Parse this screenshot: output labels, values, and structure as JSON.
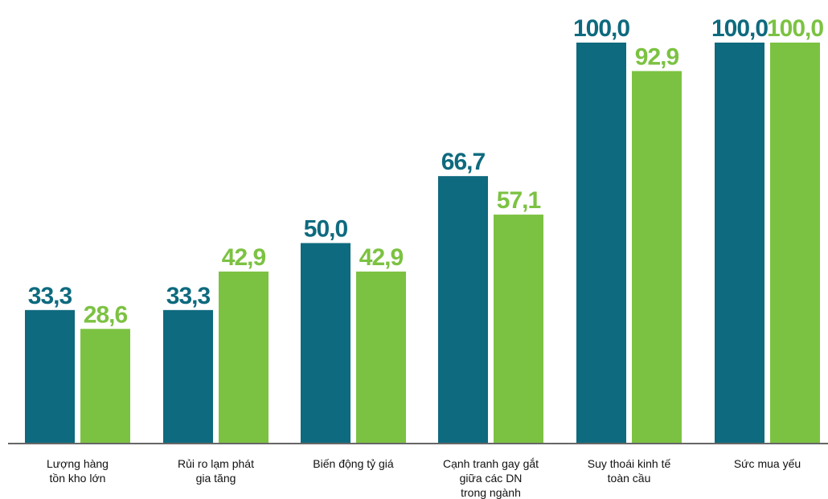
{
  "chart_data": {
    "type": "bar",
    "categories": [
      [
        "Lượng hàng",
        "tồn kho lớn"
      ],
      [
        "Rủi ro lạm phát",
        "gia tăng"
      ],
      [
        "Biến động tỷ giá"
      ],
      [
        "Cạnh tranh gay gắt",
        "giữa các DN",
        "trong ngành"
      ],
      [
        "Suy thoái kinh tế",
        "toàn cầu"
      ],
      [
        "Sức mua yếu"
      ]
    ],
    "series": [
      {
        "values": [
          33.3,
          33.3,
          50.0,
          66.7,
          100.0,
          100.0
        ],
        "labels": [
          "33,3",
          "33,3",
          "50,0",
          "66,7",
          "100,0",
          "100,0"
        ],
        "color": "#0e6a7e"
      },
      {
        "values": [
          28.6,
          42.9,
          42.9,
          57.1,
          92.9,
          100.0
        ],
        "labels": [
          "28,6",
          "42,9",
          "42,9",
          "57,1",
          "92,9",
          "100,0"
        ],
        "color": "#7cc242"
      }
    ],
    "ylim": [
      0,
      100
    ],
    "grid": false,
    "axis_color": "#666666"
  }
}
